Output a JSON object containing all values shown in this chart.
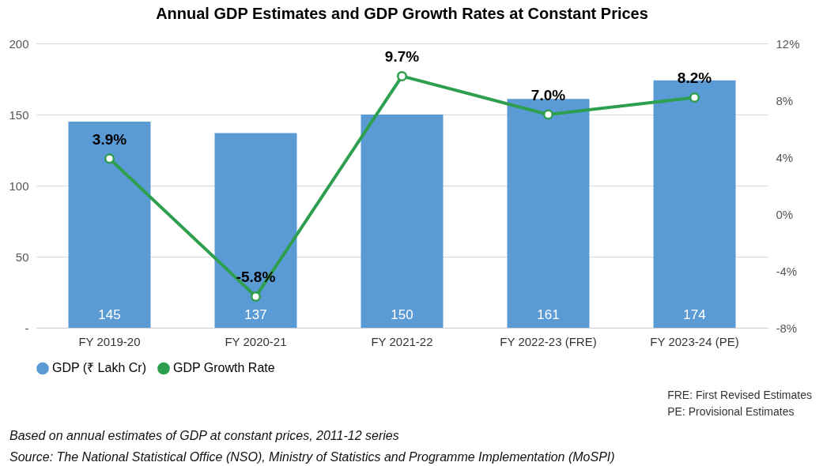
{
  "chart_data": {
    "type": "bar",
    "title": "Annual GDP Estimates and GDP Growth Rates at Constant Prices",
    "categories": [
      "FY 2019-20",
      "FY 2020-21",
      "FY 2021-22",
      "FY 2022-23 (FRE)",
      "FY 2023-24 (PE)"
    ],
    "series": [
      {
        "name": "GDP (₹ Lakh Cr)",
        "color": "#5b9bd5",
        "values": [
          145,
          137,
          150,
          161,
          174
        ],
        "value_labels": [
          "145",
          "137",
          "150",
          "161",
          "174"
        ]
      },
      {
        "name": "GDP Growth Rate",
        "type": "line",
        "axis": "y2",
        "color": "#2e9e4f",
        "values": [
          3.9,
          -5.8,
          9.7,
          7.0,
          8.2
        ],
        "value_labels": [
          "3.9%",
          "-5.8%",
          "9.7%",
          "7.0%",
          "8.2%"
        ]
      }
    ],
    "ylim": [
      0,
      200
    ],
    "yticks": [
      {
        "value": 0,
        "label": "-"
      },
      50,
      100,
      150,
      200
    ],
    "y2lim": [
      -8,
      12
    ],
    "y2ticks": [
      {
        "value": -8,
        "label": "-8%"
      },
      {
        "value": -4,
        "label": "-4%"
      },
      {
        "value": 0,
        "label": "0%"
      },
      {
        "value": 4,
        "label": "4%"
      },
      {
        "value": 8,
        "label": "8%"
      },
      {
        "value": 12,
        "label": "12%"
      }
    ],
    "grid": "y",
    "legend": "bottom",
    "marker": "circle",
    "annotations": [
      "FRE: First Revised Estimates",
      "PE: Provisional Estimates",
      "Based on annual estimates of GDP at constant prices, 2011-12 series",
      "Source: The National Statistical Office (NSO), Ministry of Statistics and Programme Implementation (MoSPI)"
    ]
  }
}
